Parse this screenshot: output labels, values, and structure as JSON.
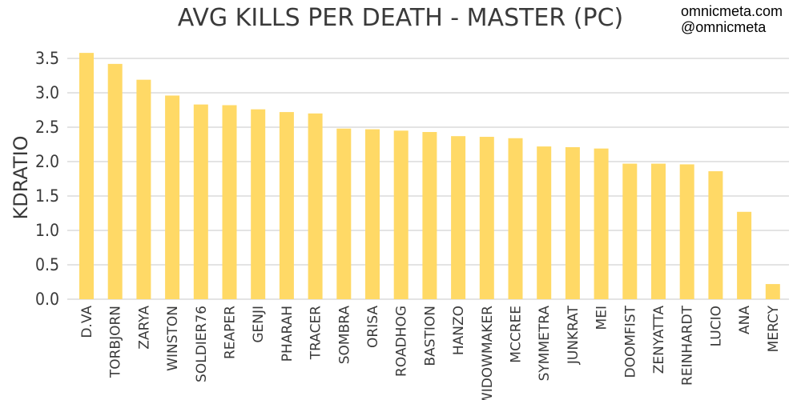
{
  "header": {
    "site": "omnicmeta.com",
    "handle": "@omnicmeta"
  },
  "chart_data": {
    "type": "bar",
    "title": "AVG KILLS PER DEATH - MASTER (PC)",
    "xlabel": "",
    "ylabel": "KDRATIO",
    "ylim": [
      0,
      3.6
    ],
    "yticks": [
      "0.0",
      "0.5",
      "1.0",
      "1.5",
      "2.0",
      "2.5",
      "3.0",
      "3.5"
    ],
    "grid": true,
    "bar_color": "#FFD966",
    "categories": [
      "D.VA",
      "TORBJORN",
      "ZARYA",
      "WINSTON",
      "SOLDIER76",
      "REAPER",
      "GENJI",
      "PHARAH",
      "TRACER",
      "SOMBRA",
      "ORISA",
      "ROADHOG",
      "BASTION",
      "HANZO",
      "WIDOWMAKER",
      "MCCREE",
      "SYMMETRA",
      "JUNKRAT",
      "MEI",
      "DOOMFIST",
      "ZENYATTA",
      "REINHARDT",
      "LUCIO",
      "ANA",
      "MERCY"
    ],
    "values": [
      3.58,
      3.42,
      3.19,
      2.96,
      2.83,
      2.82,
      2.76,
      2.72,
      2.7,
      2.48,
      2.47,
      2.45,
      2.43,
      2.37,
      2.36,
      2.34,
      2.22,
      2.21,
      2.19,
      1.97,
      1.97,
      1.96,
      1.86,
      1.27,
      0.22
    ]
  }
}
